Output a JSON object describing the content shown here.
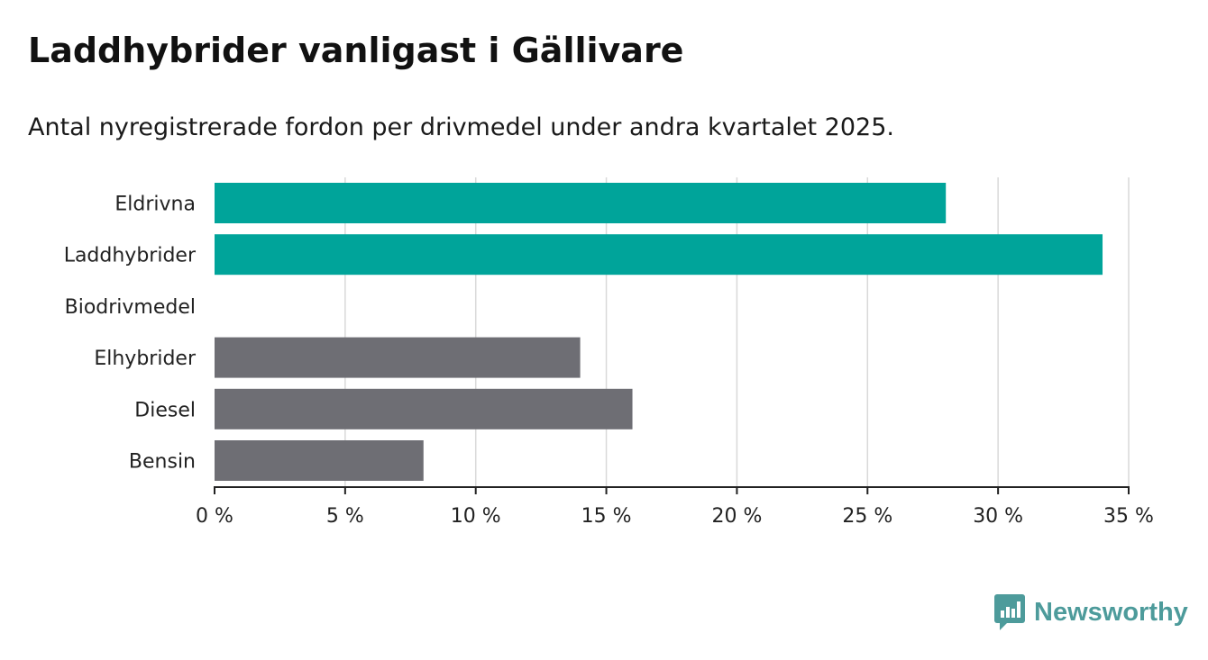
{
  "chart_data": {
    "type": "bar",
    "orientation": "horizontal",
    "title": "Laddhybrider vanligast i Gällivare",
    "subtitle": "Antal nyregistrerade fordon per drivmedel under andra kvartalet 2025.",
    "categories": [
      "Eldrivna",
      "Laddhybrider",
      "Biodrivmedel",
      "Elhybrider",
      "Diesel",
      "Bensin"
    ],
    "values": [
      28,
      34,
      0,
      14,
      16,
      8
    ],
    "bar_colors": [
      "#00a49a",
      "#00a49a",
      "#00a49a",
      "#6e6e74",
      "#6e6e74",
      "#6e6e74"
    ],
    "xlim": [
      0,
      35
    ],
    "x_ticks": [
      0,
      5,
      10,
      15,
      20,
      25,
      30,
      35
    ],
    "x_tick_labels": [
      "0 %",
      "5 %",
      "10 %",
      "15 %",
      "20 %",
      "25 %",
      "30 %",
      "35 %"
    ],
    "grid": true,
    "xlabel": "",
    "ylabel": ""
  },
  "brand": {
    "name": "Newsworthy",
    "icon": "newsworthy-logo-icon",
    "color": "#4d9b9b"
  }
}
